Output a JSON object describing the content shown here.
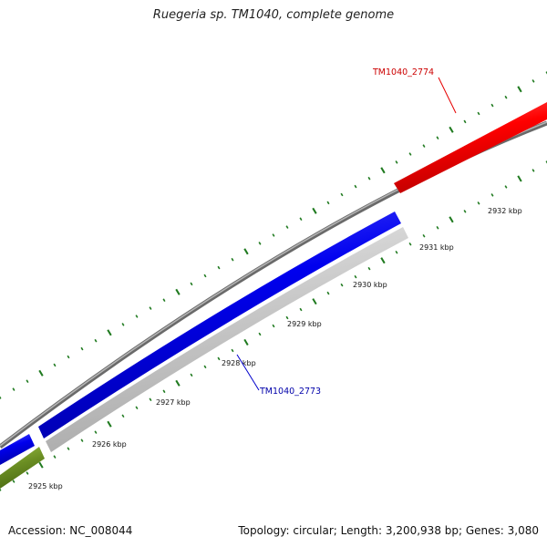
{
  "title": "Ruegeria sp. TM1040, complete genome",
  "footer": {
    "accession": "Accession: NC_008044",
    "summary": "Topology: circular; Length: 3,200,938 bp; Genes: 3,080"
  },
  "colors": {
    "backbone": "#8a8a8a",
    "tick": "#1f7a1f",
    "forward_gene": "#e60000",
    "reverse_gene": "#0000e6",
    "product_track": "#c8c8c8",
    "other_gene": "#6b8e23",
    "label_red": "#cc0000",
    "label_blue": "#0000aa"
  },
  "scale": {
    "unit": "kbp",
    "tick_labels": [
      {
        "kbp": 2925,
        "text": "2925 kbp"
      },
      {
        "kbp": 2926,
        "text": "2926 kbp"
      },
      {
        "kbp": 2927,
        "text": "2927 kbp"
      },
      {
        "kbp": 2928,
        "text": "2928 kbp"
      },
      {
        "kbp": 2929,
        "text": "2929 kbp"
      },
      {
        "kbp": 2930,
        "text": "2930 kbp"
      },
      {
        "kbp": 2931,
        "text": "2931 kbp"
      },
      {
        "kbp": 2932,
        "text": "2932 kbp"
      }
    ]
  },
  "genes": [
    {
      "name": "TM1040_2774",
      "strand": "forward",
      "label": "TM1040_2774"
    },
    {
      "name": "TM1040_2773",
      "strand": "reverse",
      "label": "TM1040_2773"
    }
  ]
}
